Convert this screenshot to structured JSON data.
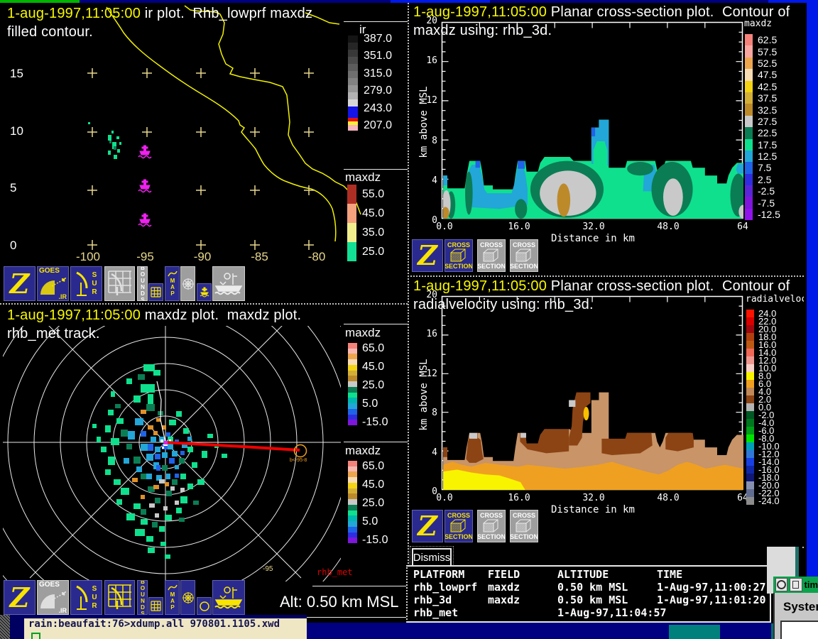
{
  "labels": {
    "zebra": "Z",
    "goes": "GOES",
    "goes_ir": ".IR",
    "sur": "SUR",
    "bounds": "BOUNDS",
    "map": "MAP",
    "cross": "CROSS",
    "section": "SECTION",
    "dismiss": "Dismiss"
  },
  "panel_ir": {
    "title_time": "1-aug-1997,11:05:00",
    "title_rest": " ir plot.  Rhb_lowprf maxdz",
    "title_line2": "filled contour.",
    "lat_labels": [
      "15",
      "10",
      "5",
      "0"
    ],
    "lon_labels": [
      "-100",
      "-95",
      "-90",
      "-85",
      "-80"
    ],
    "legend_ir": {
      "title": "ir",
      "labels": [
        "387.0",
        "351.0",
        "315.0",
        "279.0",
        "243.0",
        "207.0"
      ],
      "bar": [
        {
          "c": "#141414",
          "h": 10
        },
        {
          "c": "#262626",
          "h": 10
        },
        {
          "c": "#383838",
          "h": 10
        },
        {
          "c": "#4a4a4a",
          "h": 10
        },
        {
          "c": "#5c5c5c",
          "h": 10
        },
        {
          "c": "#6f6f6f",
          "h": 10
        },
        {
          "c": "#828282",
          "h": 10
        },
        {
          "c": "#969696",
          "h": 10
        },
        {
          "c": "#b2b2b2",
          "h": 10
        },
        {
          "c": "#d6d6d6",
          "h": 10
        },
        {
          "c": "#1414e8",
          "h": 16
        },
        {
          "c": "#e81010",
          "h": 5
        },
        {
          "c": "#f8ee30",
          "h": 5
        },
        {
          "c": "#f8b4bc",
          "h": 8
        }
      ]
    },
    "legend_maxdz": {
      "title": "maxdz",
      "entries": [
        {
          "v": "55.0",
          "c": "#ad2f24"
        },
        {
          "v": "45.0",
          "c": "#f5a27e"
        },
        {
          "v": "35.0",
          "c": "#f1ee8e"
        },
        {
          "v": "25.0",
          "c": "#13e094"
        }
      ]
    }
  },
  "panel_ppi": {
    "title_time": "1-aug-1997,11:05:00",
    "title_rest": " maxdz plot.  maxdz plot.",
    "title_line2": "rhb_met track.",
    "alt_label": "Alt: 0.50 km MSL",
    "track_label": "rhb_met",
    "lon_tick": "-95",
    "storm_label": "b<-95-8",
    "legend": {
      "title": "maxdz",
      "labels": [
        "65.0",
        "45.0",
        "25.0",
        "5.0",
        "-15.0"
      ],
      "bar": [
        "#f4837b",
        "#f8b8b0",
        "#eda64e",
        "#f7dcb4",
        "#f3d313",
        "#d4af37",
        "#bd8a2a",
        "#c9c9c9",
        "#0b7d54",
        "#0fe08d",
        "#00b8b0",
        "#22a7d8",
        "#1f63e8",
        "#2e2ee0",
        "#7e16dc"
      ]
    }
  },
  "panel_xs_maxdz": {
    "title_time": "1-aug-1997,11:05:00",
    "title_rest": " Planar cross-section plot.  Contour of",
    "title_line2": "maxdz using: rhb_3d.",
    "ylabel": "km above MSL",
    "xlabel": "Distance in km",
    "yticks": [
      "20",
      "16",
      "12",
      "8",
      "4",
      "0"
    ],
    "xticks": [
      "0.0",
      "16.0",
      "32.0",
      "48.0",
      "64"
    ],
    "legend": {
      "title": "maxdz",
      "entries": [
        {
          "v": "62.5",
          "c": "#f4837b"
        },
        {
          "v": "57.5",
          "c": "#f9a7a0"
        },
        {
          "v": "52.5",
          "c": "#eda64e"
        },
        {
          "v": "47.5",
          "c": "#f7dcb4"
        },
        {
          "v": "42.5",
          "c": "#f3d313"
        },
        {
          "v": "37.5",
          "c": "#d4af37"
        },
        {
          "v": "32.5",
          "c": "#bd8a2a"
        },
        {
          "v": "27.5",
          "c": "#c9c9c9"
        },
        {
          "v": "22.5",
          "c": "#0b7d54"
        },
        {
          "v": "17.5",
          "c": "#0fe08d"
        },
        {
          "v": "12.5",
          "c": "#22a7d8"
        },
        {
          "v": "7.5",
          "c": "#1f63e8"
        },
        {
          "v": "2.5",
          "c": "#2e2ee0"
        },
        {
          "v": "-2.5",
          "c": "#5a25d6"
        },
        {
          "v": "-7.5",
          "c": "#7e16dc"
        },
        {
          "v": "-12.5",
          "c": "#9013ec"
        }
      ]
    }
  },
  "panel_xs_vel": {
    "title_time": "1-aug-1997,11:05:00",
    "title_rest": " Planar cross-section plot.  Contour of",
    "title_line2": "radialvelocity using: rhb_3d.",
    "ylabel": "km above MSL",
    "xlabel": "Distance in km",
    "yticks": [
      "20",
      "16",
      "12",
      "8",
      "4",
      "0"
    ],
    "xticks": [
      "0.0",
      "16.0",
      "32.0",
      "48.0",
      "64"
    ],
    "legend": {
      "title": "radialvelocity",
      "entries": [
        {
          "v": "24.0",
          "c": "#f81400"
        },
        {
          "v": "22.0",
          "c": "#d80000"
        },
        {
          "v": "20.0",
          "c": "#a00810"
        },
        {
          "v": "18.0",
          "c": "#b04010"
        },
        {
          "v": "16.0",
          "c": "#bc5a14"
        },
        {
          "v": "14.0",
          "c": "#f06858"
        },
        {
          "v": "12.0",
          "c": "#f09890"
        },
        {
          "v": "10.0",
          "c": "#f8d0c8"
        },
        {
          "v": "8.0",
          "c": "#f8f400"
        },
        {
          "v": "6.0",
          "c": "#f0a020"
        },
        {
          "v": "4.0",
          "c": "#c08858"
        },
        {
          "v": "2.0",
          "c": "#8c4414"
        },
        {
          "v": "0.0",
          "c": "#b4b4b4"
        },
        {
          "v": "-2.0",
          "c": "#005824"
        },
        {
          "v": "-4.0",
          "c": "#007820"
        },
        {
          "v": "-6.0",
          "c": "#00a018"
        },
        {
          "v": "-8.0",
          "c": "#00e400"
        },
        {
          "v": "-10.0",
          "c": "#00a0b8"
        },
        {
          "v": "-12.0",
          "c": "#3078d8"
        },
        {
          "v": "-14.0",
          "c": "#1840e0"
        },
        {
          "v": "-16.0",
          "c": "#1028a8"
        },
        {
          "v": "-18.0",
          "c": "#101874"
        },
        {
          "v": "-20.0",
          "c": "#8890b0"
        },
        {
          "v": "-22.0",
          "c": "#606c90"
        },
        {
          "v": "-24.0",
          "c": "#8c8c8c"
        }
      ]
    }
  },
  "info_table": {
    "headers": [
      "PLATFORM",
      "FIELD",
      "ALTITUDE",
      "TIME"
    ],
    "rows": [
      [
        "rhb_lowprf",
        "maxdz",
        "0.50 km MSL",
        "1-Aug-97,11:00:27"
      ],
      [
        "rhb_3d",
        "maxdz",
        "0.50 km MSL",
        "1-Aug-97,11:01:20"
      ],
      [
        "rhb_met",
        "",
        "1-Aug-97,11:04:57",
        ""
      ]
    ]
  },
  "terminal": {
    "prompt_line": "rain:beaufait:76>xdump.all 970801.1105.xwd"
  },
  "side": {
    "tim_title": "tim",
    "system_label": "System"
  }
}
